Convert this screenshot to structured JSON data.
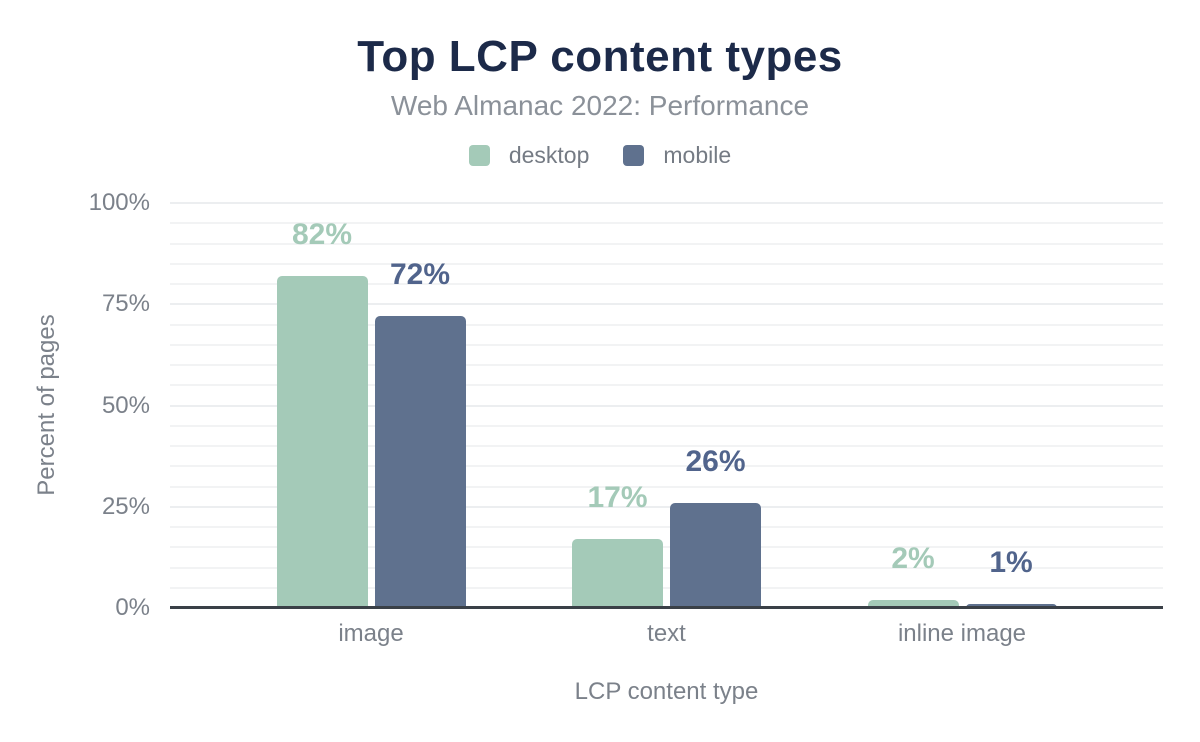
{
  "header": {
    "title": "Top LCP content types",
    "subtitle": "Web Almanac 2022: Performance"
  },
  "chart_data": {
    "type": "bar",
    "title": "Top LCP content types",
    "subtitle": "Web Almanac 2022: Performance",
    "categories": [
      "image",
      "text",
      "inline image"
    ],
    "series": [
      {
        "name": "desktop",
        "color": "#a4cab8",
        "label_color": "#a4cab8",
        "values": [
          82,
          17,
          2
        ]
      },
      {
        "name": "mobile",
        "color": "#5f718e",
        "label_color": "#51648c",
        "values": [
          72,
          26,
          1
        ]
      }
    ],
    "data_labels": [
      "82%",
      "72%",
      "17%",
      "26%",
      "2%",
      "1%"
    ],
    "value_suffix": "%",
    "xlabel": "LCP content type",
    "ylabel": "Percent of pages",
    "ylim": [
      0,
      100
    ],
    "yticks": [
      0,
      25,
      50,
      75,
      100
    ],
    "ytick_suffix": "%",
    "minor_grid_step": 5,
    "grid": true,
    "legend_position": "top"
  },
  "colors": {
    "title": "#1c2a49",
    "subtitle": "#8b9199",
    "axis_text": "#7b818a",
    "legend_text": "#757b84",
    "gridline": "#f2f3f4",
    "baseline": "#3a4047",
    "background": "#ffffff"
  }
}
